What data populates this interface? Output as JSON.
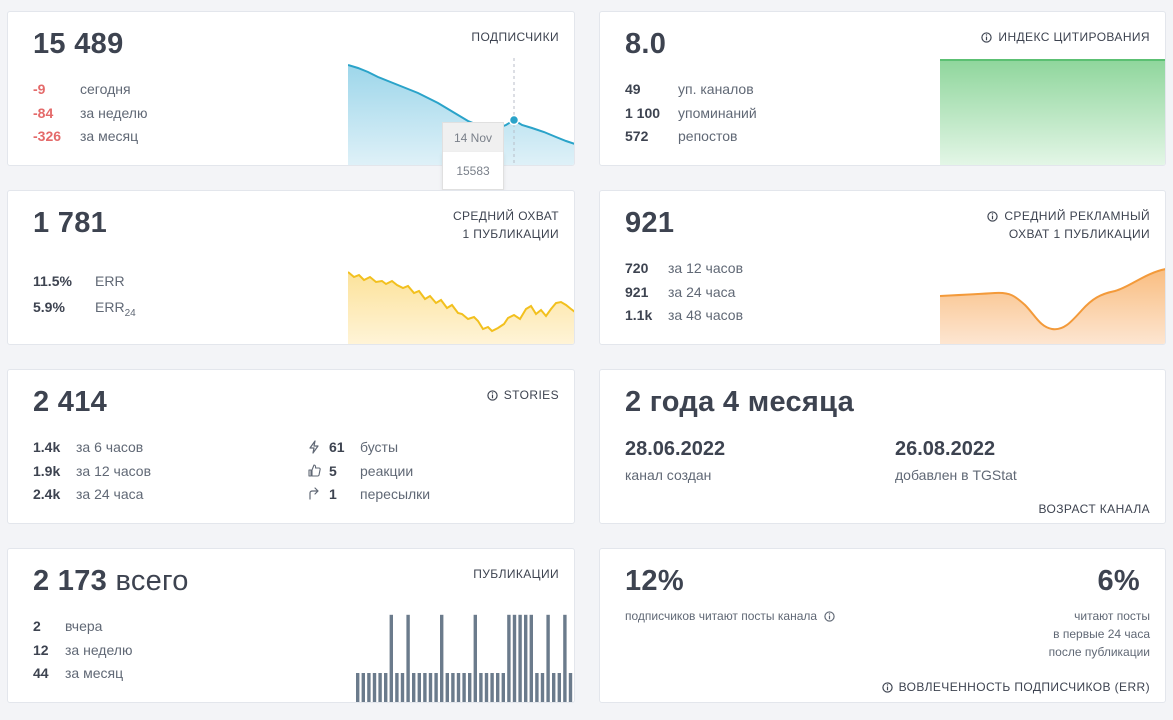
{
  "subscribers": {
    "value": "15 489",
    "label": "ПОДПИСЧИКИ",
    "rows": [
      {
        "value": "-9",
        "text": "сегодня"
      },
      {
        "value": "-84",
        "text": "за неделю"
      },
      {
        "value": "-326",
        "text": "за месяц"
      }
    ],
    "tooltip": {
      "date": "14 Nov",
      "value": "15583"
    },
    "color": "#2aa3c9"
  },
  "citation": {
    "value": "8.0",
    "label": "ИНДЕКС ЦИТИРОВАНИЯ",
    "rows": [
      {
        "value": "49",
        "text": "уп. каналов"
      },
      {
        "value": "1 100",
        "text": "упоминаний"
      },
      {
        "value": "572",
        "text": "репостов"
      }
    ],
    "color": "#5cc073"
  },
  "reach": {
    "value": "1 781",
    "label_line1": "СРЕДНИЙ ОХВАТ",
    "label_line2": "1 ПУБЛИКАЦИИ",
    "err": {
      "value": "11.5%",
      "text": "ERR"
    },
    "err24": {
      "value": "5.9%",
      "text": "ERR",
      "sub": "24"
    },
    "color": "#f2c01e"
  },
  "ad_reach": {
    "value": "921",
    "label_line1": "СРЕДНИЙ РЕКЛАМНЫЙ",
    "label_line2": "ОХВАТ 1 ПУБЛИКАЦИИ",
    "rows": [
      {
        "value": "720",
        "text": "за 12 часов"
      },
      {
        "value": "921",
        "text": "за 24 часа"
      },
      {
        "value": "1.1k",
        "text": "за 48 часов"
      }
    ],
    "color": "#f39a3a"
  },
  "stories": {
    "value": "2 414",
    "label": "STORIES",
    "rows": [
      {
        "value": "1.4k",
        "text": "за 6 часов"
      },
      {
        "value": "1.9k",
        "text": "за 12 часов"
      },
      {
        "value": "2.4k",
        "text": "за 24 часа"
      }
    ],
    "rows_right": [
      {
        "icon": "lightning-icon",
        "value": "61",
        "text": "бусты"
      },
      {
        "icon": "thumbs-up-icon",
        "value": "5",
        "text": "реакции"
      },
      {
        "icon": "forward-arrow-icon",
        "value": "1",
        "text": "пересылки"
      }
    ]
  },
  "age": {
    "value": "2 года 4 месяца",
    "created_date": "28.06.2022",
    "created_label": "канал создан",
    "added_date": "26.08.2022",
    "added_label": "добавлен в TGStat",
    "label": "ВОЗРАСТ КАНАЛА"
  },
  "publications": {
    "value": "2 173",
    "suffix": "всего",
    "label": "ПУБЛИКАЦИИ",
    "rows": [
      {
        "value": "2",
        "text": "вчера"
      },
      {
        "value": "12",
        "text": "за неделю"
      },
      {
        "value": "44",
        "text": "за месяц"
      }
    ],
    "bars": [
      1,
      1,
      1,
      1,
      1,
      1,
      2,
      1,
      1,
      2,
      1,
      1,
      1,
      1,
      1,
      2,
      1,
      1,
      1,
      1,
      1,
      2,
      1,
      1,
      1,
      1,
      1,
      2,
      2,
      2,
      2,
      2,
      1,
      1,
      2,
      1,
      1,
      2,
      1
    ],
    "color": "#6b7b8c"
  },
  "engagement": {
    "value_left": "12%",
    "text_left": "подписчиков читают посты канала",
    "value_right": "6%",
    "text_right_1": "читают посты",
    "text_right_2": "в первые 24 часа",
    "text_right_3": "после публикации",
    "label": "ВОВЛЕЧЕННОСТЬ ПОДПИСЧИКОВ (ERR)"
  }
}
